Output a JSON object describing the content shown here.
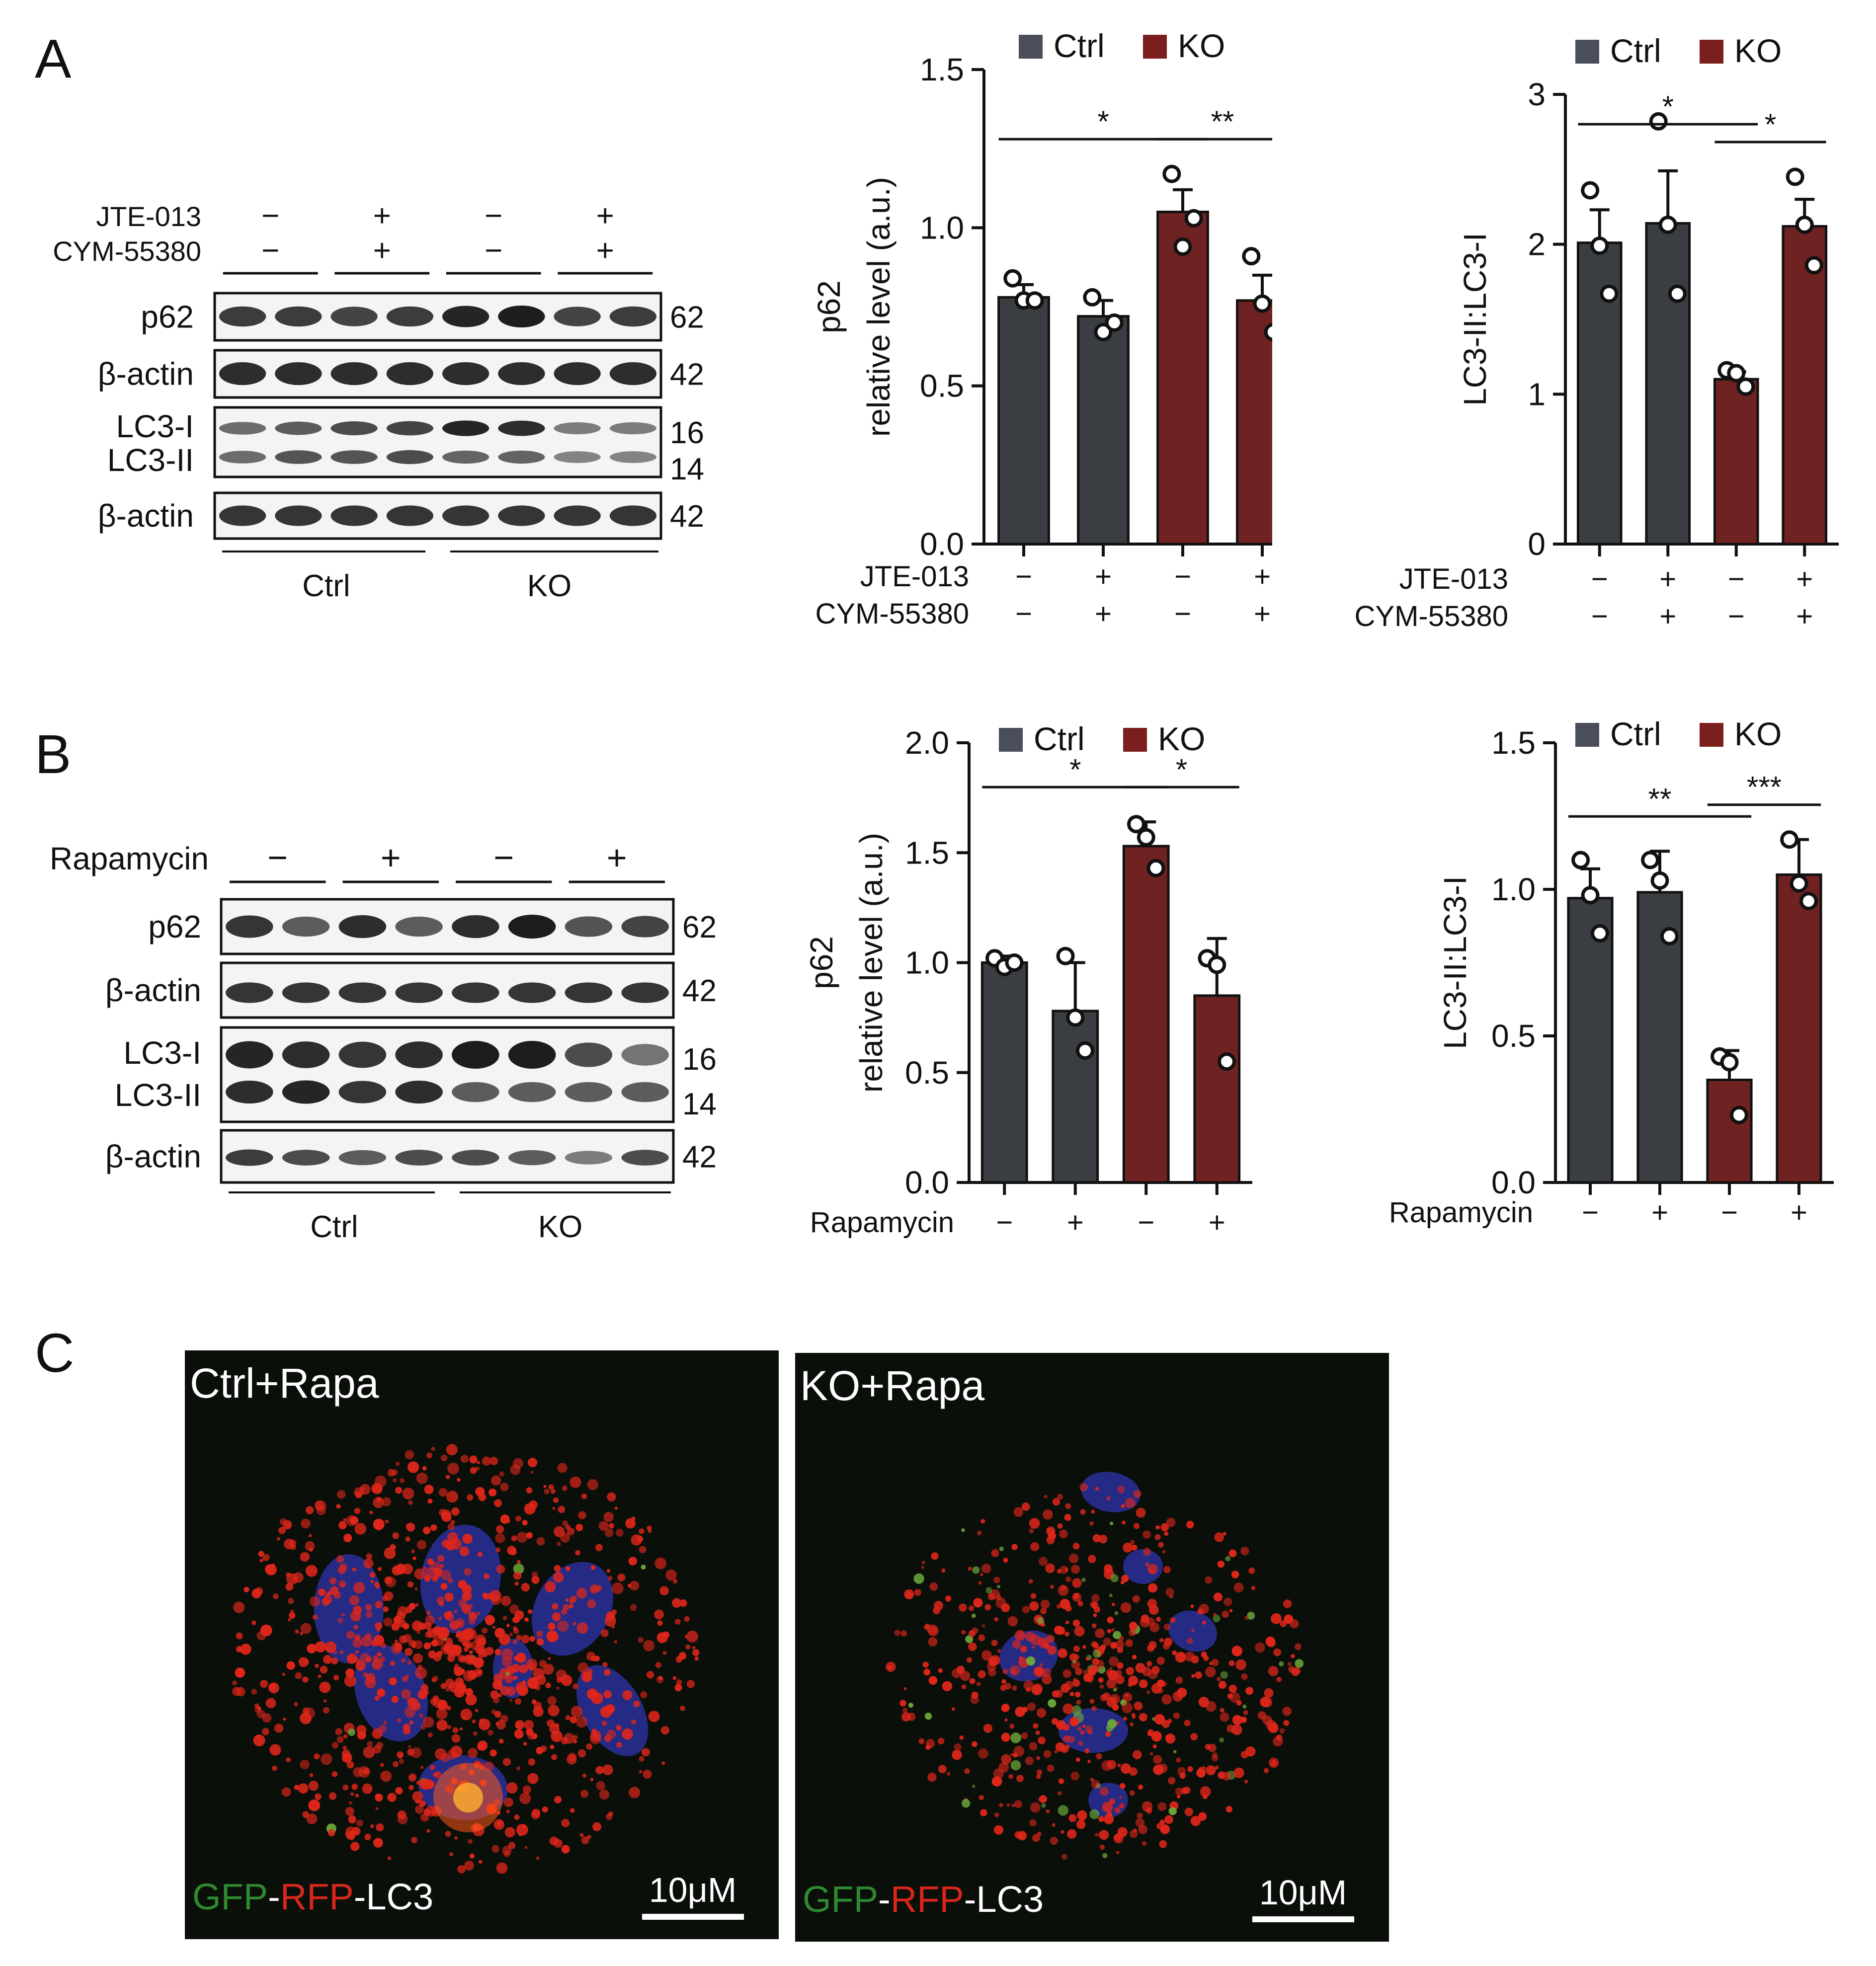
{
  "panel_letters": [
    "A",
    "B",
    "C"
  ],
  "colors": {
    "ctrl": "#3a3d42",
    "ctrl_dark": "#23252a",
    "ko": "#6f2222",
    "legend_ctrl": "#4a4e5a",
    "ko_legend": "#7a1e1e"
  },
  "blotA": {
    "treatments": [
      {
        "name": "JTE-013",
        "signs": [
          "−",
          "+",
          "−",
          "+"
        ]
      },
      {
        "name": "CYM-55380",
        "signs": [
          "−",
          "+",
          "−",
          "+"
        ]
      }
    ],
    "rows": [
      {
        "label": "p62",
        "kda": [
          "62"
        ]
      },
      {
        "label": "β-actin",
        "kda": [
          "42"
        ]
      },
      {
        "label": "LC3-I",
        "label2": "LC3-II",
        "kda": [
          "16",
          "14"
        ]
      },
      {
        "label": "β-actin",
        "kda": [
          "42"
        ]
      }
    ],
    "groups": [
      "Ctrl",
      "KO"
    ]
  },
  "blotB": {
    "treatment": {
      "name": "Rapamycin",
      "signs": [
        "−",
        "+",
        "−",
        "+"
      ]
    },
    "rows": [
      {
        "label": "p62",
        "kda": [
          "62"
        ]
      },
      {
        "label": "β-actin",
        "kda": [
          "42"
        ]
      },
      {
        "label": "LC3-I",
        "label2": "LC3-II",
        "kda": [
          "16",
          "14"
        ]
      },
      {
        "label": "β-actin",
        "kda": [
          "42"
        ]
      }
    ],
    "groups": [
      "Ctrl",
      "KO"
    ]
  },
  "chart_data": [
    {
      "id": "A-p62",
      "type": "bar",
      "ylabel": "p62",
      "ylabel2": "relative level (a.u.)",
      "ylim": [
        0,
        1.5
      ],
      "yticks": [
        "0.0",
        "0.5",
        "1.0",
        "1.5"
      ],
      "legend": [
        "Ctrl",
        "KO"
      ],
      "legend_position": "top",
      "groups": [
        "Ctrl",
        "Ctrl",
        "KO",
        "KO"
      ],
      "values": [
        0.78,
        0.72,
        1.05,
        0.77
      ],
      "errors": [
        0.04,
        0.05,
        0.07,
        0.08
      ],
      "points": [
        [
          0.84,
          0.77,
          0.77
        ],
        [
          0.78,
          0.67,
          0.7
        ],
        [
          1.17,
          0.94,
          1.03
        ],
        [
          0.91,
          0.76,
          0.67
        ]
      ],
      "treatments": [
        {
          "name": "JTE-013",
          "signs": [
            "−",
            "+",
            "−",
            "+"
          ]
        },
        {
          "name": "CYM-55380",
          "signs": [
            "−",
            "+",
            "−",
            "+"
          ]
        }
      ],
      "sig": [
        {
          "from": 0,
          "to": 2,
          "label": "*"
        },
        {
          "from": 2,
          "to": 3,
          "label": "**"
        }
      ]
    },
    {
      "id": "A-LC3",
      "type": "bar",
      "ylabel": "LC3-II:LC3-I",
      "ylim": [
        0,
        3
      ],
      "yticks": [
        "0",
        "1",
        "2",
        "3"
      ],
      "legend": [
        "Ctrl",
        "KO"
      ],
      "legend_position": "top",
      "groups": [
        "Ctrl",
        "Ctrl",
        "KO",
        "KO"
      ],
      "values": [
        2.01,
        2.14,
        1.1,
        2.12
      ],
      "errors": [
        0.22,
        0.35,
        0.05,
        0.18
      ],
      "points": [
        [
          2.36,
          1.99,
          1.67
        ],
        [
          2.82,
          2.13,
          1.67
        ],
        [
          1.16,
          1.14,
          1.05
        ],
        [
          2.45,
          2.13,
          1.86
        ]
      ],
      "treatments": [
        {
          "name": "JTE-013",
          "signs": [
            "−",
            "+",
            "−",
            "+"
          ]
        },
        {
          "name": "CYM-55380",
          "signs": [
            "−",
            "+",
            "−",
            "+"
          ]
        }
      ],
      "sig": [
        {
          "from": 0,
          "to": 2,
          "label": "*"
        },
        {
          "from": 2,
          "to": 3,
          "label": "*"
        }
      ]
    },
    {
      "id": "B-p62",
      "type": "bar",
      "ylabel": "p62",
      "ylabel2": "relative level (a.u.)",
      "ylim": [
        0,
        2.0
      ],
      "yticks": [
        "0.0",
        "0.5",
        "1.0",
        "1.5",
        "2.0"
      ],
      "legend": [
        "Ctrl",
        "KO"
      ],
      "legend_position": "top",
      "groups": [
        "Ctrl",
        "Ctrl",
        "KO",
        "KO"
      ],
      "values": [
        1.0,
        0.78,
        1.53,
        0.85
      ],
      "errors": [
        0.03,
        0.22,
        0.11,
        0.26
      ],
      "points": [
        [
          1.02,
          0.98,
          1.0
        ],
        [
          1.03,
          0.75,
          0.6
        ],
        [
          1.63,
          1.57,
          1.43
        ],
        [
          1.02,
          0.99,
          0.55
        ]
      ],
      "treatments": [
        {
          "name": "Rapamycin",
          "signs": [
            "−",
            "+",
            "−",
            "+"
          ]
        }
      ],
      "sig": [
        {
          "from": 0,
          "to": 2,
          "label": "*"
        },
        {
          "from": 2,
          "to": 3,
          "label": "*"
        }
      ]
    },
    {
      "id": "B-LC3",
      "type": "bar",
      "ylabel": "LC3-II:LC3-I",
      "ylim": [
        0,
        1.5
      ],
      "yticks": [
        "0.0",
        "0.5",
        "1.0",
        "1.5"
      ],
      "legend": [
        "Ctrl",
        "KO"
      ],
      "legend_position": "top",
      "groups": [
        "Ctrl",
        "Ctrl",
        "KO",
        "KO"
      ],
      "values": [
        0.97,
        0.99,
        0.35,
        1.05
      ],
      "errors": [
        0.1,
        0.14,
        0.1,
        0.12
      ],
      "points": [
        [
          1.1,
          0.98,
          0.85
        ],
        [
          1.1,
          1.03,
          0.84
        ],
        [
          0.43,
          0.41,
          0.23
        ],
        [
          1.17,
          1.02,
          0.96
        ]
      ],
      "treatments": [
        {
          "name": "Rapamycin",
          "signs": [
            "−",
            "+",
            "−",
            "+"
          ]
        }
      ],
      "sig": [
        {
          "from": 0,
          "to": 2,
          "label": "**"
        },
        {
          "from": 2,
          "to": 3,
          "label": "***"
        }
      ]
    }
  ],
  "micrographs": [
    {
      "title": "Ctrl+Rapa",
      "legend": [
        "GFP",
        "-",
        "RFP",
        "-LC3"
      ],
      "scale": "10μM"
    },
    {
      "title": "KO+Rapa",
      "legend": [
        "GFP",
        "-",
        "RFP",
        "-LC3"
      ],
      "scale": "10μM"
    }
  ]
}
